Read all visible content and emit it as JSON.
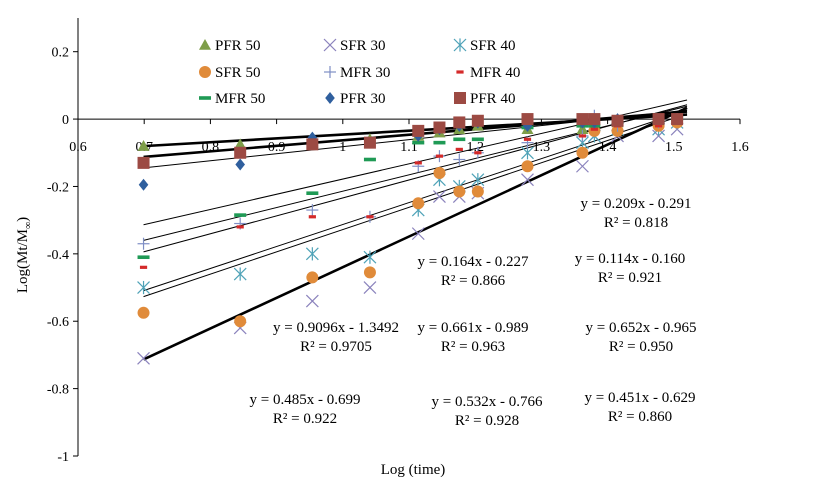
{
  "chart_data": {
    "type": "scatter",
    "xlabel": "Log (time)",
    "ylabel_base": "Log(Mt/M",
    "ylabel_sub": "∞",
    "ylabel_close": ")",
    "xlim": [
      0.6,
      1.6
    ],
    "ylim": [
      -1.0,
      0.3
    ],
    "xticks": [
      {
        "value": 0.6,
        "label": "0.6"
      },
      {
        "value": 0.7,
        "label": "0.7"
      },
      {
        "value": 0.8,
        "label": "0.8"
      },
      {
        "value": 0.9,
        "label": "0.9"
      },
      {
        "value": 1.0,
        "label": "1"
      },
      {
        "value": 1.1,
        "label": "1.1"
      },
      {
        "value": 1.2,
        "label": "1.2"
      },
      {
        "value": 1.3,
        "label": "1.3"
      },
      {
        "value": 1.4,
        "label": "1.4"
      },
      {
        "value": 1.5,
        "label": "1.5"
      },
      {
        "value": 1.6,
        "label": "1.6"
      }
    ],
    "yticks": [
      {
        "value": 0.2,
        "label": "0.2"
      },
      {
        "value": 0.0,
        "label": "0"
      },
      {
        "value": -0.2,
        "label": "-0.2"
      },
      {
        "value": -0.4,
        "label": "-0.4"
      },
      {
        "value": -0.6,
        "label": "-0.6"
      },
      {
        "value": -0.8,
        "label": "-0.8"
      },
      {
        "value": -1.0,
        "label": "-1"
      }
    ],
    "series": [
      {
        "name": "PFR 50",
        "marker": "triangle",
        "color": "#7e9e49",
        "x": [
          0.699,
          0.845,
          0.954,
          1.041,
          1.114,
          1.146,
          1.176,
          1.204,
          1.279,
          1.362,
          1.38,
          1.415,
          1.477,
          1.505
        ],
        "y": [
          -0.08,
          -0.075,
          -0.07,
          -0.06,
          -0.05,
          -0.04,
          -0.03,
          -0.02,
          -0.03,
          -0.03,
          -0.02,
          -0.01,
          -0.01,
          0.0
        ]
      },
      {
        "name": "SFR 30",
        "marker": "x",
        "color": "#8a82bc",
        "x": [
          0.699,
          0.845,
          0.954,
          1.041,
          1.114,
          1.146,
          1.176,
          1.204,
          1.279,
          1.362,
          1.38,
          1.415,
          1.477,
          1.505
        ],
        "y": [
          -0.71,
          -0.62,
          -0.54,
          -0.5,
          -0.34,
          -0.23,
          -0.23,
          -0.22,
          -0.18,
          -0.14,
          -0.05,
          -0.05,
          -0.05,
          -0.03
        ]
      },
      {
        "name": "SFR 40",
        "marker": "asterisk",
        "color": "#4ea2b7",
        "x": [
          0.699,
          0.845,
          0.954,
          1.041,
          1.114,
          1.146,
          1.176,
          1.204,
          1.279,
          1.362,
          1.38,
          1.415,
          1.477,
          1.505
        ],
        "y": [
          -0.5,
          -0.46,
          -0.4,
          -0.41,
          -0.27,
          -0.18,
          -0.2,
          -0.18,
          -0.1,
          -0.07,
          -0.05,
          -0.03,
          -0.03,
          -0.01
        ]
      },
      {
        "name": "SFR 50",
        "marker": "circle",
        "color": "#e08b3a",
        "x": [
          0.699,
          0.845,
          0.954,
          1.041,
          1.114,
          1.146,
          1.176,
          1.204,
          1.279,
          1.362,
          1.38,
          1.415,
          1.477,
          1.505
        ],
        "y": [
          -0.575,
          -0.6,
          -0.47,
          -0.455,
          -0.25,
          -0.16,
          -0.215,
          -0.215,
          -0.14,
          -0.1,
          -0.035,
          -0.035,
          -0.02,
          -0.01
        ]
      },
      {
        "name": "MFR 30",
        "marker": "plus",
        "color": "#7e8ec5",
        "x": [
          0.699,
          0.845,
          0.954,
          1.041,
          1.114,
          1.146,
          1.176,
          1.204,
          1.279,
          1.362,
          1.38,
          1.415,
          1.477,
          1.505
        ],
        "y": [
          -0.37,
          -0.31,
          -0.27,
          -0.29,
          -0.14,
          -0.11,
          -0.12,
          -0.1,
          -0.07,
          -0.05,
          0.01,
          -0.02,
          -0.01,
          0.0
        ]
      },
      {
        "name": "MFR 40",
        "marker": "dash",
        "color": "#d42a2a",
        "x": [
          0.699,
          0.845,
          0.954,
          1.041,
          1.114,
          1.146,
          1.176,
          1.204,
          1.279,
          1.362,
          1.38,
          1.415,
          1.477,
          1.505
        ],
        "y": [
          -0.44,
          -0.32,
          -0.29,
          -0.29,
          -0.13,
          -0.11,
          -0.09,
          -0.1,
          -0.06,
          -0.05,
          -0.03,
          -0.02,
          -0.02,
          -0.01
        ]
      },
      {
        "name": "MFR 50",
        "marker": "bar",
        "color": "#1f9a55",
        "x": [
          0.699,
          0.845,
          0.954,
          1.041,
          1.114,
          1.146,
          1.176,
          1.204,
          1.279,
          1.362,
          1.38,
          1.415,
          1.477,
          1.505
        ],
        "y": [
          -0.41,
          -0.285,
          -0.22,
          -0.12,
          -0.07,
          -0.07,
          -0.06,
          -0.06,
          -0.025,
          -0.02,
          -0.02,
          -0.01,
          -0.01,
          0.0
        ]
      },
      {
        "name": "PFR 30",
        "marker": "diamond",
        "color": "#2f5f9e",
        "x": [
          0.699,
          0.845,
          0.954,
          1.041,
          1.114,
          1.146,
          1.176,
          1.204,
          1.279,
          1.362,
          1.38,
          1.415,
          1.477,
          1.505
        ],
        "y": [
          -0.195,
          -0.135,
          -0.055,
          -0.07,
          -0.05,
          -0.03,
          -0.02,
          -0.01,
          -0.02,
          -0.01,
          -0.01,
          0.0,
          0.0,
          0.0
        ]
      },
      {
        "name": "PFR 40",
        "marker": "square",
        "color": "#9c4a43",
        "x": [
          0.699,
          0.845,
          0.954,
          1.041,
          1.114,
          1.146,
          1.176,
          1.204,
          1.279,
          1.362,
          1.38,
          1.415,
          1.477,
          1.505
        ],
        "y": [
          -0.13,
          -0.1,
          -0.075,
          -0.07,
          -0.035,
          -0.025,
          -0.01,
          -0.005,
          0.0,
          0.0,
          0.0,
          -0.005,
          0.0,
          0.0
        ]
      }
    ],
    "trendlines": [
      {
        "slope": 0.209,
        "intercept": -0.291,
        "heavy": false
      },
      {
        "slope": 0.164,
        "intercept": -0.227,
        "heavy": true
      },
      {
        "slope": 0.114,
        "intercept": -0.16,
        "heavy": true
      },
      {
        "slope": 0.9096,
        "intercept": -1.3492,
        "heavy": true
      },
      {
        "slope": 0.661,
        "intercept": -0.989,
        "heavy": false
      },
      {
        "slope": 0.652,
        "intercept": -0.965,
        "heavy": false
      },
      {
        "slope": 0.485,
        "intercept": -0.699,
        "heavy": false
      },
      {
        "slope": 0.532,
        "intercept": -0.766,
        "heavy": false
      },
      {
        "slope": 0.451,
        "intercept": -0.629,
        "heavy": false
      }
    ],
    "equations": [
      {
        "eq": "y = 0.209x - 0.291",
        "r2": "R² = 0.818",
        "place": "right-upper"
      },
      {
        "eq": "y = 0.164x - 0.227",
        "r2": "R² = 0.866",
        "place": "center-upper"
      },
      {
        "eq": "y = 0.114x - 0.160",
        "r2": "R² = 0.921",
        "place": "right-upper-2"
      },
      {
        "eq": "y = 0.9096x - 1.3492",
        "r2": "R² = 0.9705",
        "place": "left-middle"
      },
      {
        "eq": "y = 0.661x - 0.989",
        "r2": "R² = 0.963",
        "place": "center-middle"
      },
      {
        "eq": "y = 0.652x - 0.965",
        "r2": "R² = 0.950",
        "place": "right-middle"
      },
      {
        "eq": "y = 0.485x - 0.699",
        "r2": "R² = 0.922",
        "place": "left-lower"
      },
      {
        "eq": "y = 0.532x - 0.766",
        "r2": "R² = 0.928",
        "place": "center-lower"
      },
      {
        "eq": "y = 0.451x - 0.629",
        "r2": "R² = 0.860",
        "place": "right-lower"
      }
    ],
    "legend_placement": "top-left",
    "grid": false
  }
}
